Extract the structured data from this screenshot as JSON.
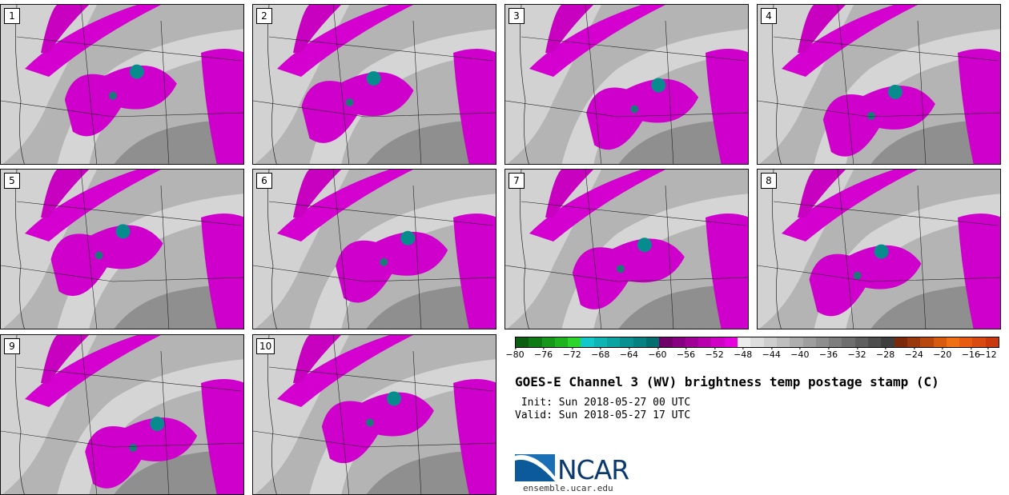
{
  "panels": [
    {
      "label": "1"
    },
    {
      "label": "2"
    },
    {
      "label": "3"
    },
    {
      "label": "4"
    },
    {
      "label": "5"
    },
    {
      "label": "6"
    },
    {
      "label": "7"
    },
    {
      "label": "8"
    },
    {
      "label": "9"
    },
    {
      "label": "10"
    }
  ],
  "colorbar": {
    "colors": [
      "#0b5e10",
      "#0e7a14",
      "#16981a",
      "#1fb41f",
      "#2cd42c",
      "#12c8c8",
      "#0fb5b5",
      "#0ca3a3",
      "#099191",
      "#068080",
      "#046e6e",
      "#6e0068",
      "#87007f",
      "#a00096",
      "#b800ad",
      "#cf00c4",
      "#e600dc",
      "#ececec",
      "#dedede",
      "#cecece",
      "#bebebe",
      "#aeaeae",
      "#9e9e9e",
      "#8e8e8e",
      "#7e7e7e",
      "#6e6e6e",
      "#5e5e5e",
      "#4e4e4e",
      "#3e3e3e",
      "#7a2a0a",
      "#98380c",
      "#b8480e",
      "#d85c10",
      "#f07014",
      "#e85a12",
      "#d84a10",
      "#c83a0e"
    ],
    "ticks": [
      "−80",
      "−76",
      "−72",
      "−68",
      "−64",
      "−60",
      "−56",
      "−52",
      "−48",
      "−44",
      "−40",
      "−36",
      "−32",
      "−28",
      "−24",
      "−20",
      "−16",
      "−12"
    ]
  },
  "title": "GOES-E Channel 3 (WV) brightness temp postage stamp (C)",
  "init": " Init: Sun 2018-05-27 00 UTC",
  "valid": "Valid: Sun 2018-05-27 17 UTC",
  "logo": {
    "text": "NCAR",
    "url": "ensemble.ucar.edu"
  }
}
